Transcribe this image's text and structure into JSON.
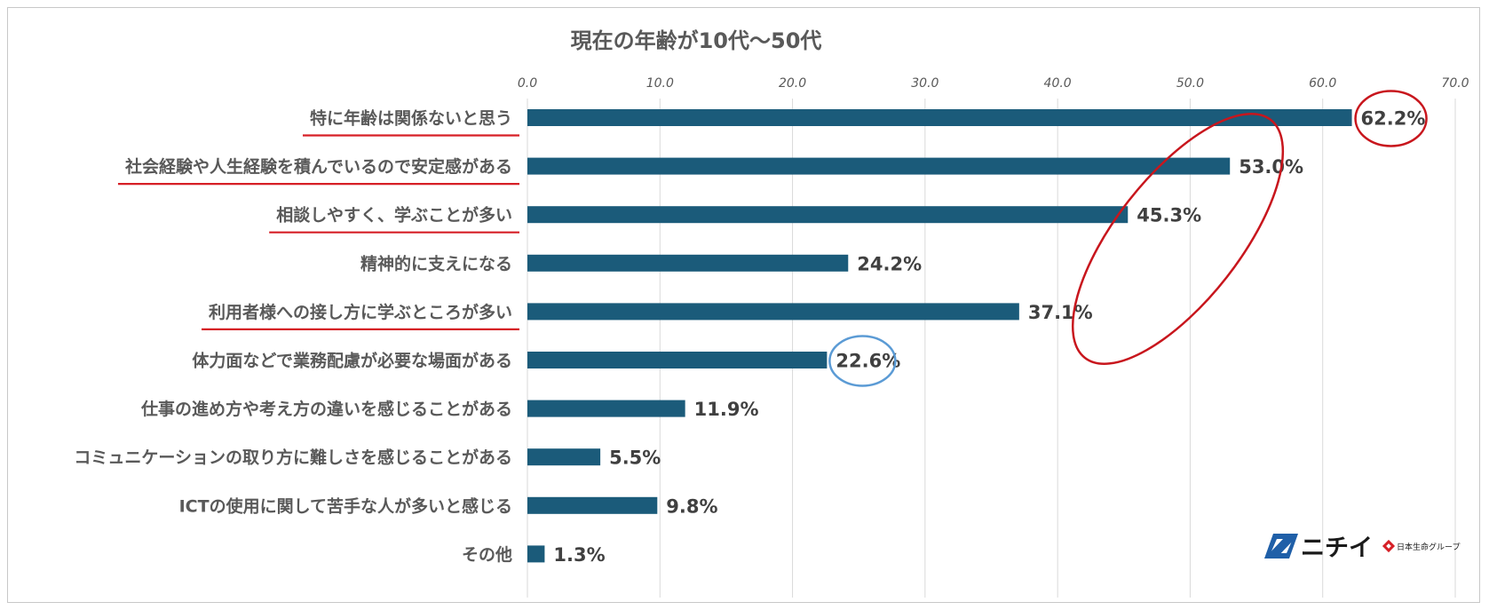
{
  "chart_data": {
    "type": "bar",
    "orientation": "horizontal",
    "title": "現在の年齢が10代～50代",
    "xlim": [
      0,
      70
    ],
    "x_ticks": [
      "0.0",
      "10.0",
      "20.0",
      "30.0",
      "40.0",
      "50.0",
      "60.0",
      "70.0"
    ],
    "grid": true,
    "categories": [
      "特に年齢は関係ないと思う",
      "社会経験や人生経験を積んでいるので安定感がある",
      "相談しやすく、学ぶことが多い",
      "精神的に支えになる",
      "利用者様への接し方に学ぶところが多い",
      "体力面などで業務配慮が必要な場面がある",
      "仕事の進め方や考え方の違いを感じることがある",
      "コミュニケーションの取り方に難しさを感じることがある",
      "ICTの使用に関して苦手な人が多いと感じる",
      "その他"
    ],
    "values": [
      62.2,
      53.0,
      45.3,
      24.2,
      37.1,
      22.6,
      11.9,
      5.5,
      9.8,
      1.3
    ],
    "value_labels": [
      "62.2%",
      "53.0%",
      "45.3%",
      "24.2%",
      "37.1%",
      "22.6%",
      "11.9%",
      "5.5%",
      "9.8%",
      "1.3%"
    ],
    "underlined_categories": [
      0,
      1,
      2,
      4
    ],
    "red_circled_values": [
      0
    ],
    "red_ellipse_group": [
      1,
      2,
      4
    ],
    "blue_circled_values": [
      5
    ],
    "colors": {
      "bar": "#1b5b7a",
      "underline": "#d61f26",
      "red_circle": "#c8161d",
      "blue_circle": "#5b9bd5",
      "grid": "#d9d9d9",
      "text": "#595959"
    }
  },
  "logo": {
    "text": "ニチイ",
    "subtext": "日本生命グループ",
    "mark_icon": "nichii-logo-mark",
    "seal_icon": "nissay-seal-icon"
  }
}
